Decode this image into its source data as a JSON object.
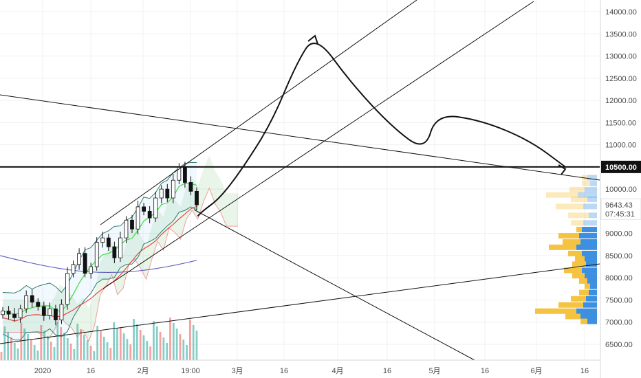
{
  "chart_data": {
    "type": "line",
    "price_axis": {
      "ticks": [
        "14000.00",
        "13500.00",
        "13000.00",
        "12500.00",
        "12000.00",
        "11500.00",
        "11000.00",
        "10000.00",
        "9000.00",
        "8500.00",
        "8000.00",
        "7500.00",
        "7000.00",
        "6500.00"
      ],
      "ylim": [
        6250,
        14250
      ]
    },
    "time_axis": {
      "ticks": [
        "2020",
        "16",
        "2月",
        "19:00",
        "3月",
        "16",
        "4月",
        "16",
        "5月",
        "16",
        "6月",
        "16"
      ]
    },
    "labels": {
      "horizontal_level": "10500.00",
      "last_price": "9643.43",
      "countdown": "07:45:31"
    },
    "series": [
      {
        "values": [
          7250,
          7180,
          7100,
          7300,
          7600,
          7450,
          7350,
          7150,
          7300,
          7050,
          7400,
          8100,
          8300,
          8550,
          8100,
          8250,
          8800,
          8900,
          8700,
          8450,
          8900,
          9300,
          9100,
          9600,
          9500,
          9350,
          9800,
          10000,
          9800,
          10200,
          10500,
          10150,
          9950,
          9643
        ]
      }
    ],
    "projection_path": [
      9400,
      9520,
      9800,
      10450,
      11500,
      12800,
      13500,
      12400,
      11400,
      10850,
      11700,
      11550,
      11100,
      10500
    ],
    "colors": {
      "up": "#26a69a",
      "down": "#ef5350",
      "drawing": "#000000",
      "volume_up": "#26a69a",
      "volume_down": "#ef5350",
      "profile_yellow": "#f5c342",
      "profile_blue": "#3d8fe0"
    }
  }
}
